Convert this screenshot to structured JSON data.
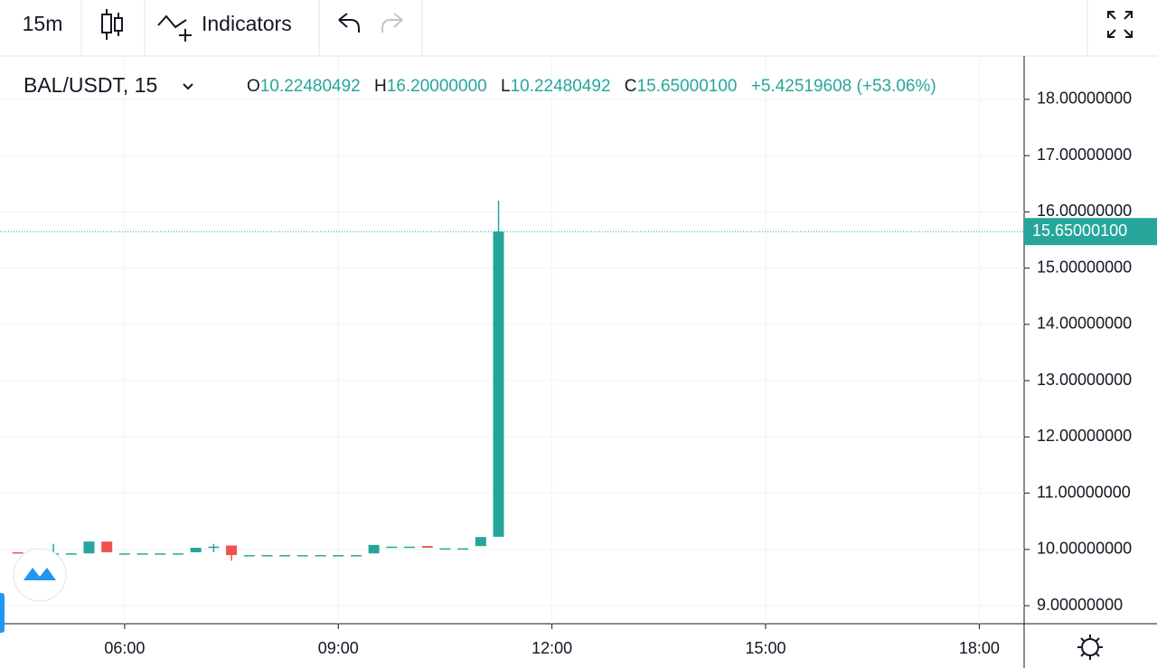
{
  "toolbar": {
    "interval": "15m",
    "indicators": "Indicators"
  },
  "legend": {
    "symbol": "BAL/USDT, 15",
    "open_label": "O",
    "open": "10.22480492",
    "high_label": "H",
    "high": "16.20000000",
    "low_label": "L",
    "low": "10.22480492",
    "close_label": "C",
    "close": "15.65000100",
    "change": "+5.42519608 (+53.06%)"
  },
  "chart_data": {
    "type": "candlestick",
    "up_color": "#26a69a",
    "down_color": "#ef5350",
    "grid": true,
    "x": [
      4.5,
      4.75,
      5,
      5.25,
      5.5,
      5.75,
      6,
      6.25,
      6.5,
      6.75,
      7,
      7.25,
      7.5,
      7.75,
      8,
      8.25,
      8.5,
      8.75,
      9,
      9.25,
      9.5,
      9.75,
      10,
      10.25,
      10.5,
      10.75,
      11,
      11.25
    ],
    "open": [
      9.95,
      9.93,
      9.93,
      9.93,
      9.93,
      10.14,
      9.93,
      9.93,
      9.93,
      9.93,
      9.95,
      10.04,
      10.07,
      9.9,
      9.9,
      9.9,
      9.9,
      9.9,
      9.9,
      9.9,
      9.93,
      10.05,
      10.05,
      10.06,
      10.02,
      10.02,
      10.06,
      10.22480492
    ],
    "high": [
      9.95,
      9.93,
      10.1,
      9.93,
      10.14,
      10.14,
      9.93,
      9.93,
      9.93,
      9.93,
      10.03,
      10.1,
      10.07,
      9.9,
      9.9,
      9.9,
      9.9,
      9.9,
      9.9,
      9.9,
      10.08,
      10.05,
      10.05,
      10.06,
      10.02,
      10.02,
      10.22,
      16.2
    ],
    "low": [
      9.93,
      9.93,
      9.9,
      9.93,
      9.93,
      9.95,
      9.93,
      9.93,
      9.93,
      9.93,
      9.95,
      9.95,
      9.8,
      9.9,
      9.9,
      9.9,
      9.9,
      9.9,
      9.9,
      9.9,
      9.93,
      10.05,
      10.05,
      10.03,
      10.02,
      10.02,
      10.06,
      10.22480492
    ],
    "close": [
      9.93,
      9.93,
      9.93,
      9.93,
      10.14,
      9.95,
      9.93,
      9.93,
      9.93,
      9.93,
      10.03,
      10.05,
      9.9,
      9.9,
      9.9,
      9.9,
      9.9,
      9.9,
      9.9,
      9.9,
      10.08,
      10.05,
      10.05,
      10.03,
      10.02,
      10.02,
      10.22,
      15.650001
    ],
    "xlim": [
      4.25,
      18.63
    ],
    "xticks": [
      {
        "value": 6,
        "label": "06:00"
      },
      {
        "value": 9,
        "label": "09:00"
      },
      {
        "value": 12,
        "label": "12:00"
      },
      {
        "value": 15,
        "label": "15:00"
      },
      {
        "value": 18,
        "label": "18:00"
      }
    ],
    "ylim": [
      8.68,
      18.77
    ],
    "yticks": [
      {
        "value": 9,
        "label": "9.00000000"
      },
      {
        "value": 10,
        "label": "10.00000000"
      },
      {
        "value": 11,
        "label": "11.00000000"
      },
      {
        "value": 12,
        "label": "12.00000000"
      },
      {
        "value": 13,
        "label": "13.00000000"
      },
      {
        "value": 14,
        "label": "14.00000000"
      },
      {
        "value": 15,
        "label": "15.00000000"
      },
      {
        "value": 16,
        "label": "16.00000000"
      },
      {
        "value": 17,
        "label": "17.00000000"
      },
      {
        "value": 18,
        "label": "18.00000000"
      }
    ],
    "last_price": {
      "value": 15.650001,
      "label": "15.65000100"
    }
  }
}
